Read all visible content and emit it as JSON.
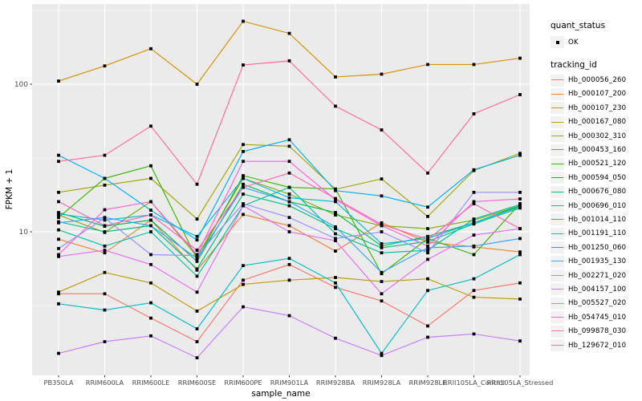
{
  "chart_data": {
    "type": "line",
    "title": "",
    "xlabel": "sample_name",
    "ylabel": "FPKM + 1",
    "y_scale": "log10",
    "y_ticks": [
      10,
      100
    ],
    "y_minor_ticks": [
      3.1623,
      31.623,
      316.23
    ],
    "ylim": [
      1.05,
      350
    ],
    "grid": "major-and-minor, white on gray panel",
    "legend_position": "right",
    "point_marker": "black square (quant_status OK)",
    "categories": [
      "PB350LA",
      "RRIM600LA",
      "RRIM600LE",
      "RRIM600SE",
      "RRIM600PE",
      "RRIM901LA",
      "RRIM928BA",
      "RRIM928LA",
      "RRIM928LE",
      "RRII105LA_Control",
      "RRII105LA_Stressed"
    ],
    "series": [
      {
        "name": "Hb_000056_260",
        "color": "#F8766D",
        "values": [
          3.8,
          3.8,
          2.6,
          1.8,
          4.7,
          6.0,
          4.2,
          3.4,
          2.3,
          4.0,
          4.5
        ]
      },
      {
        "name": "Hb_000107_200",
        "color": "#EA8331",
        "values": [
          8.9,
          7.2,
          12.0,
          5.5,
          13.1,
          11.0,
          7.4,
          11.5,
          8.5,
          7.9,
          7.3
        ]
      },
      {
        "name": "Hb_000107_230",
        "color": "#D89000",
        "values": [
          105,
          133,
          174,
          100,
          267,
          221,
          112,
          117,
          136,
          136,
          150
        ]
      },
      {
        "name": "Hb_000167_080",
        "color": "#C09B00",
        "values": [
          3.9,
          5.3,
          4.5,
          2.9,
          4.4,
          4.7,
          4.9,
          4.6,
          4.8,
          3.6,
          3.5
        ]
      },
      {
        "name": "Hb_000302_310",
        "color": "#A3A500",
        "values": [
          18.5,
          20.7,
          23.0,
          12.2,
          39.0,
          38.0,
          19.4,
          22.8,
          12.7,
          26.0,
          34.0
        ]
      },
      {
        "name": "Hb_000453_160",
        "color": "#7CAE00",
        "values": [
          13.0,
          9.9,
          16.0,
          6.8,
          23.0,
          18.0,
          13.0,
          11.0,
          10.5,
          12.0,
          15.0
        ]
      },
      {
        "name": "Hb_000521_120",
        "color": "#39B600",
        "values": [
          12.5,
          23.0,
          28.0,
          6.5,
          24.0,
          20.0,
          19.5,
          5.2,
          9.0,
          7.0,
          15.5
        ]
      },
      {
        "name": "Hb_000594_050",
        "color": "#00BB4E",
        "values": [
          13.5,
          10.9,
          12.0,
          6.3,
          21.0,
          16.0,
          13.5,
          8.0,
          9.3,
          11.5,
          15.0
        ]
      },
      {
        "name": "Hb_000676_080",
        "color": "#00BF7D",
        "values": [
          11.7,
          10.0,
          11.0,
          5.6,
          18.0,
          15.0,
          10.5,
          7.8,
          8.6,
          11.3,
          14.5
        ]
      },
      {
        "name": "Hb_000696_010",
        "color": "#00C1A3",
        "values": [
          10.3,
          8.0,
          10.0,
          5.0,
          15.0,
          20.0,
          9.7,
          7.2,
          7.5,
          12.2,
          15.3
        ]
      },
      {
        "name": "Hb_001014_110",
        "color": "#00BFC4",
        "values": [
          3.25,
          2.95,
          3.3,
          2.2,
          5.9,
          6.6,
          4.5,
          1.5,
          4.0,
          4.8,
          7.0
        ]
      },
      {
        "name": "Hb_001191_110",
        "color": "#00BAE0",
        "values": [
          13.2,
          12.0,
          13.0,
          9.3,
          23.0,
          17.0,
          16.0,
          8.3,
          9.0,
          11.5,
          14.8
        ]
      },
      {
        "name": "Hb_001250_060",
        "color": "#00B0F6",
        "values": [
          33,
          23,
          14,
          8.8,
          35,
          42,
          19,
          17.5,
          14.7,
          26.3,
          33
        ]
      },
      {
        "name": "Hb_001935_130",
        "color": "#35A2FF",
        "values": [
          11.5,
          12.5,
          11.0,
          6.6,
          20.0,
          16.0,
          10.8,
          5.3,
          7.8,
          8.0,
          9.0
        ]
      },
      {
        "name": "Hb_002271_020",
        "color": "#9590FF",
        "values": [
          7.7,
          12.4,
          7.0,
          6.9,
          15.5,
          12.5,
          9.0,
          10.0,
          7.2,
          18.5,
          18.5
        ]
      },
      {
        "name": "Hb_004157_100",
        "color": "#C77CFF",
        "values": [
          1.5,
          1.8,
          1.97,
          1.4,
          3.1,
          2.7,
          1.9,
          1.45,
          1.93,
          2.03,
          1.82
        ]
      },
      {
        "name": "Hb_005527_020",
        "color": "#E76BF3",
        "values": [
          6.8,
          7.5,
          6.0,
          3.9,
          15.0,
          10.0,
          8.7,
          3.8,
          6.5,
          9.5,
          10.5
        ]
      },
      {
        "name": "Hb_054745_010",
        "color": "#FA62DB",
        "values": [
          7.0,
          14.1,
          16.0,
          7.0,
          30.0,
          30.0,
          16.5,
          11.0,
          8.0,
          16.0,
          16.7
        ]
      },
      {
        "name": "Hb_099878_030",
        "color": "#FF62BC",
        "values": [
          16.0,
          11.0,
          13.0,
          7.5,
          20.0,
          25.0,
          16.8,
          11.2,
          8.9,
          15.5,
          10.5
        ]
      },
      {
        "name": "Hb_129672_010",
        "color": "#FF6A98",
        "values": [
          30,
          33,
          52,
          21,
          135,
          144,
          71,
          49,
          25,
          63,
          85
        ]
      }
    ],
    "legend": {
      "quant_title": "quant_status",
      "quant_items": [
        "OK"
      ],
      "tracking_title": "tracking_id"
    },
    "style": {
      "panel_bg": "#EBEBEB",
      "grid_color": "#FFFFFF",
      "tick_label_color": "#4D4D4D",
      "axis_title_color": "#000000",
      "point_color": "#000000",
      "legend_key_bg": "#F2F2F2"
    }
  }
}
